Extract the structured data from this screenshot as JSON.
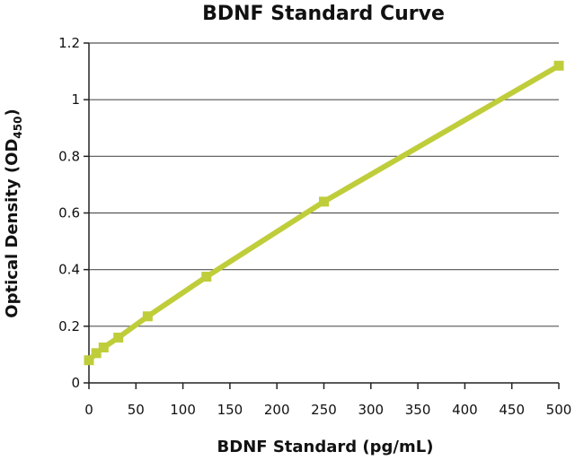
{
  "chart_data": {
    "type": "line",
    "title": "BDNF Standard Curve",
    "xlabel": "BDNF Standard (pg/mL)",
    "ylabel": {
      "main": "Optical Density (OD",
      "subscript": "450",
      "close": ")"
    },
    "xlim": [
      0,
      500
    ],
    "ylim": [
      0,
      1.2
    ],
    "xticks": [
      0,
      50,
      100,
      150,
      200,
      250,
      300,
      350,
      400,
      450,
      500
    ],
    "yticks": [
      0,
      0.2,
      0.4,
      0.6,
      0.8,
      1,
      1.2
    ],
    "grid": "horizontal",
    "series": [
      {
        "color": "#bfcd3a",
        "x": [
          0,
          7.8,
          15.6,
          31.3,
          62.5,
          125,
          250,
          500
        ],
        "y": [
          0.08,
          0.105,
          0.125,
          0.16,
          0.235,
          0.375,
          0.64,
          1.12
        ]
      }
    ]
  }
}
